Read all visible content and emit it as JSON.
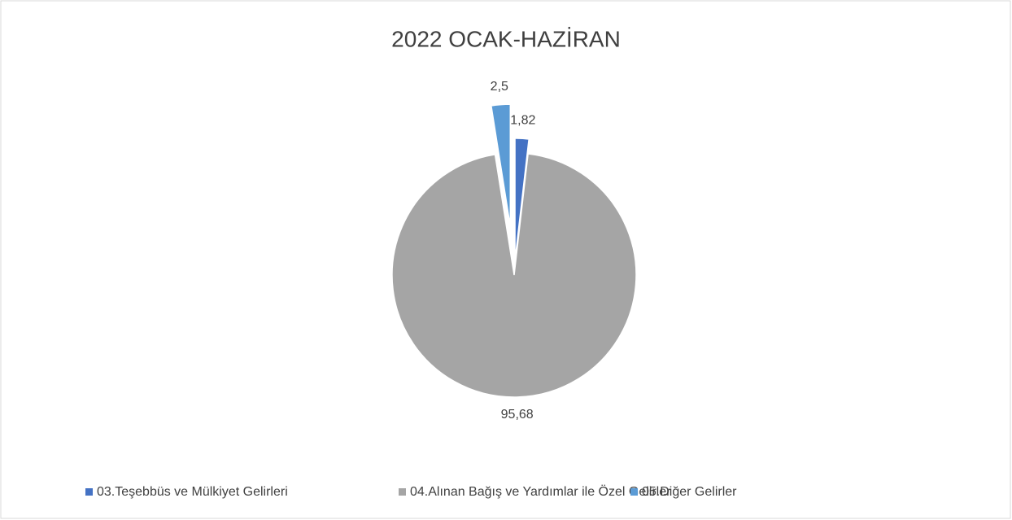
{
  "chart_data": {
    "type": "pie",
    "title": "2022 OCAK-HAZİRAN",
    "categories": [
      "03.Teşebbüs ve Mülkiyet Gelirleri",
      "04.Alınan Bağış ve Yardımlar ile Özel Gelirler",
      "05.Diğer Gelirler"
    ],
    "values": [
      1.82,
      95.68,
      2.5
    ],
    "value_labels": [
      "1,82",
      "95,68",
      "2,5"
    ],
    "colors": [
      "#4472c4",
      "#a5a5a5",
      "#5b9bd5"
    ],
    "legend": "bottom"
  }
}
